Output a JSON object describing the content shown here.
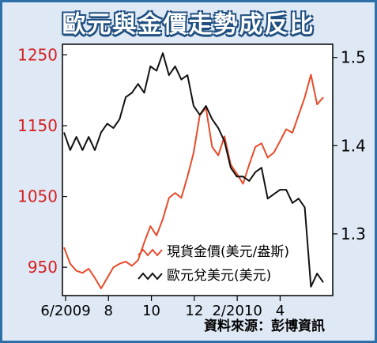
{
  "chart_data": {
    "type": "line",
    "title": "歐元與金價走勢成反比",
    "source": "資料來源：彭博資訊",
    "x_labels": [
      "6/2009",
      "8",
      "10",
      "12",
      "2/2010",
      "4"
    ],
    "y_left": {
      "ticks": [
        "1250",
        "1150",
        "1050",
        "950"
      ],
      "ylim": [
        910,
        1265
      ],
      "color": "#d32020"
    },
    "y_right": {
      "ticks": [
        "1.5",
        "1.4",
        "1.3"
      ],
      "ylim": [
        1.23,
        1.515
      ],
      "color": "#000000"
    },
    "series": [
      {
        "name": "現貨金價(美元/盎斯)",
        "axis": "left",
        "color": "#e84a2a",
        "values": [
          978,
          955,
          945,
          942,
          948,
          935,
          920,
          935,
          950,
          955,
          958,
          952,
          960,
          985,
          1008,
          995,
          1018,
          1048,
          1055,
          1048,
          1078,
          1112,
          1165,
          1175,
          1120,
          1108,
          1135,
          1095,
          1082,
          1068,
          1095,
          1120,
          1125,
          1105,
          1112,
          1128,
          1145,
          1140,
          1165,
          1190,
          1222,
          1180,
          1190
        ]
      },
      {
        "name": "歐元兌美元(美元)",
        "axis": "right",
        "color": "#111111",
        "values": [
          1.415,
          1.395,
          1.41,
          1.395,
          1.41,
          1.395,
          1.415,
          1.425,
          1.42,
          1.43,
          1.455,
          1.46,
          1.47,
          1.46,
          1.49,
          1.485,
          1.505,
          1.48,
          1.49,
          1.475,
          1.48,
          1.445,
          1.435,
          1.445,
          1.43,
          1.42,
          1.405,
          1.375,
          1.365,
          1.365,
          1.36,
          1.37,
          1.375,
          1.34,
          1.345,
          1.35,
          1.35,
          1.335,
          1.34,
          1.33,
          1.24,
          1.255,
          1.245
        ]
      }
    ],
    "legend_position": "bottom-right"
  }
}
